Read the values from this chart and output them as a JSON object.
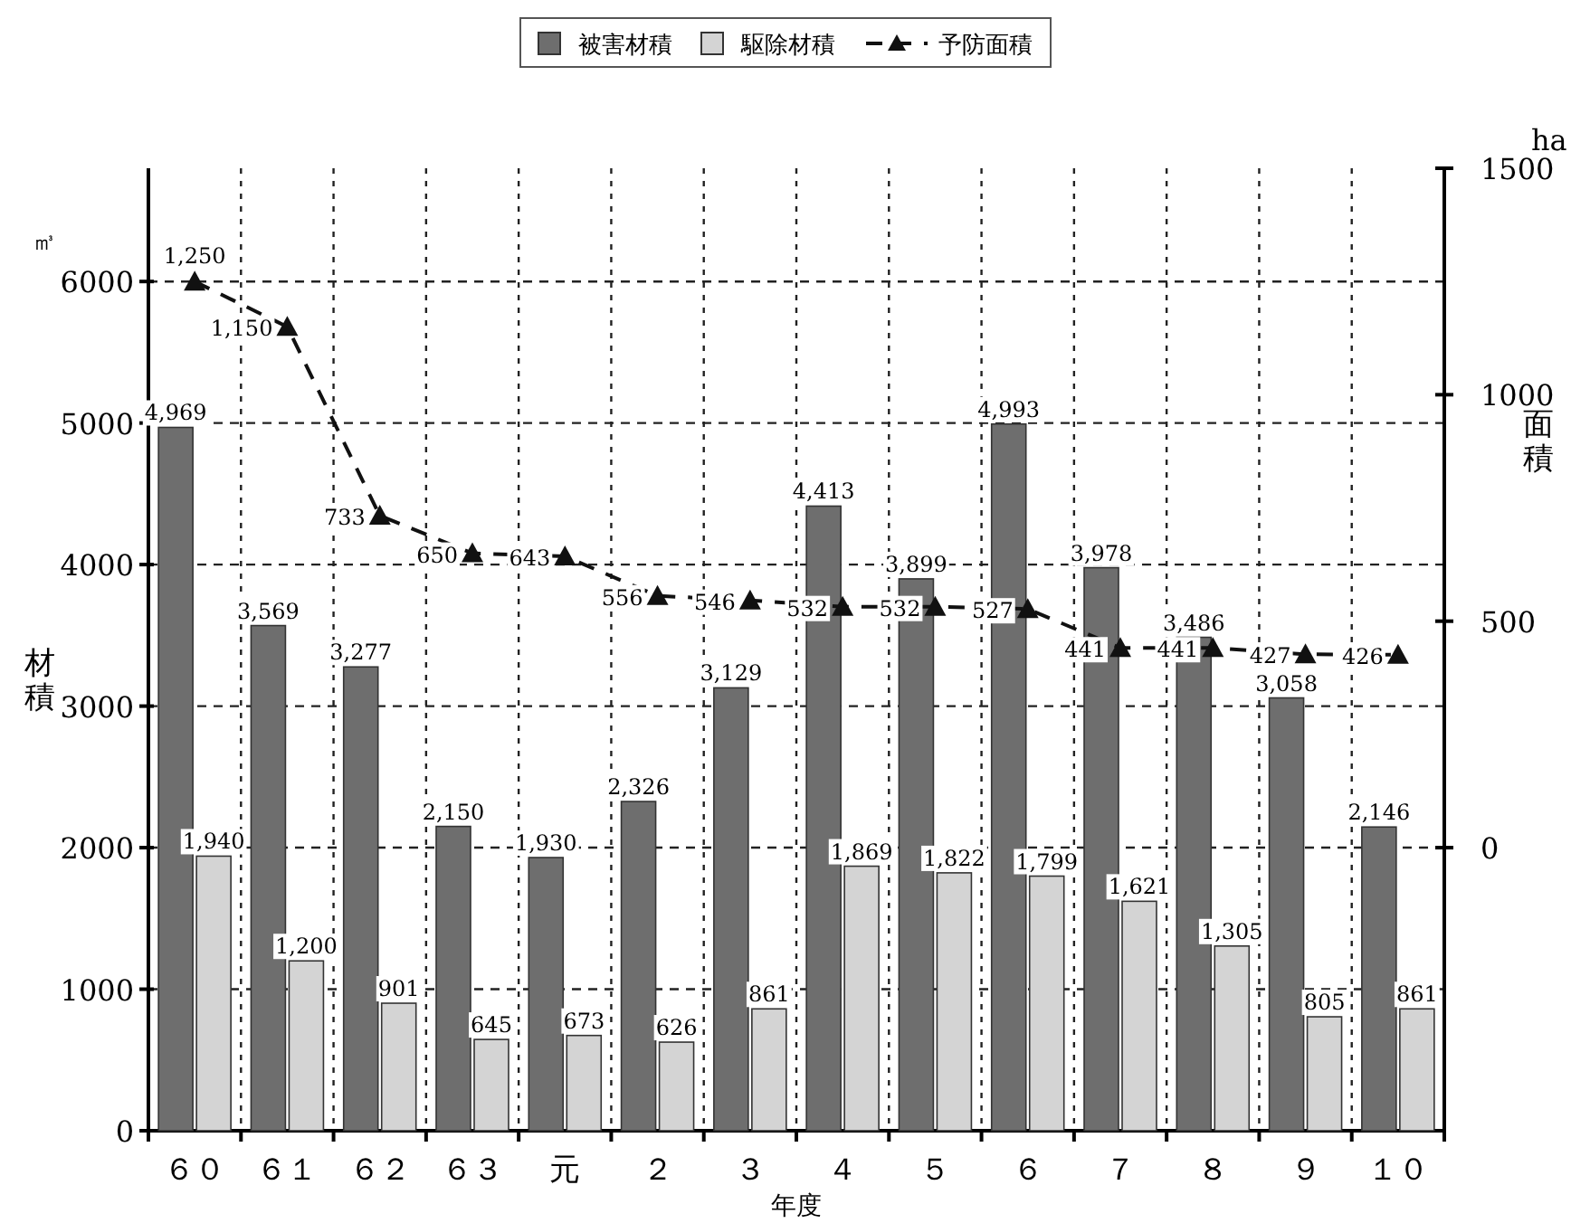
{
  "chart_data": {
    "type": "bar",
    "xlabel": "年度",
    "ylabel": "材積",
    "y2label": "面積",
    "annotations": [
      "㎥",
      "ha"
    ],
    "categories": [
      "６０",
      "６１",
      "６２",
      "６３",
      "元",
      "２",
      "３",
      "４",
      "５",
      "６",
      "７",
      "８",
      "９",
      "１０"
    ],
    "series": [
      {
        "name": "被害材積",
        "color": "#6e6e6e",
        "values": [
          4969,
          3569,
          3277,
          2150,
          1930,
          2326,
          3129,
          4413,
          3899,
          4993,
          3978,
          3486,
          3058,
          2146
        ],
        "value_labels": [
          "4,969",
          "3,569",
          "3,277",
          "2,150",
          "1,930",
          "2,326",
          "3,129",
          "4,413",
          "3,899",
          "4,993",
          "3,978",
          "3,486",
          "3,058",
          "2,146"
        ]
      },
      {
        "name": "駆除材積",
        "color": "#d4d4d4",
        "values": [
          1940,
          1200,
          901,
          645,
          673,
          626,
          861,
          1869,
          1822,
          1799,
          1621,
          1305,
          805,
          861
        ],
        "value_labels": [
          "1,940",
          "1,200",
          "901",
          "645",
          "673",
          "626",
          "861",
          "1,869",
          "1,822",
          "1,799",
          "1,621",
          "1,305",
          "805",
          "861"
        ]
      },
      {
        "name": "予防面積",
        "type": "line",
        "axis": "y2",
        "color": "#111111",
        "marker": "triangle",
        "line_style": "dashed",
        "values": [
          1250,
          1150,
          733,
          650,
          643,
          556,
          546,
          532,
          532,
          527,
          441,
          441,
          427,
          426
        ],
        "value_labels": [
          "1,250",
          "1,150",
          "733",
          "650",
          "643",
          "556",
          "546",
          "532",
          "532",
          "527",
          "441",
          "441",
          "427",
          "426"
        ]
      }
    ],
    "ylim": [
      0,
      6800
    ],
    "yticks": [
      0,
      1000,
      2000,
      3000,
      4000,
      5000,
      6000
    ],
    "y2lim": [
      -625,
      1500
    ],
    "y2ticks": [
      0,
      500,
      1000,
      1500
    ],
    "grid": true,
    "legend": "top"
  }
}
